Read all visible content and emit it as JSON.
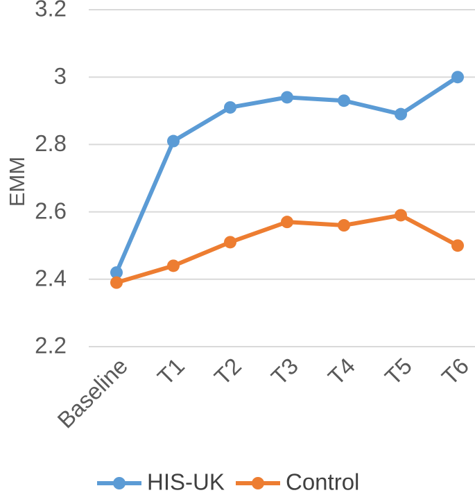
{
  "chart_data": {
    "type": "line",
    "categories": [
      "Baseline",
      "T1",
      "T2",
      "T3",
      "T4",
      "T5",
      "T6"
    ],
    "series": [
      {
        "name": "HIS-UK",
        "color": "#5B9BD5",
        "values": [
          2.42,
          2.81,
          2.91,
          2.94,
          2.93,
          2.89,
          3.0
        ]
      },
      {
        "name": "Control",
        "color": "#ED7D31",
        "values": [
          2.39,
          2.44,
          2.51,
          2.57,
          2.56,
          2.59,
          2.5
        ]
      }
    ],
    "ylabel": "EMM",
    "xlabel": "",
    "title": "",
    "ylim": [
      2.2,
      3.2
    ],
    "yticks": [
      "2.2",
      "2.4",
      "2.6",
      "2.8",
      "3",
      "3.2"
    ],
    "grid": true,
    "legend_position": "bottom"
  }
}
